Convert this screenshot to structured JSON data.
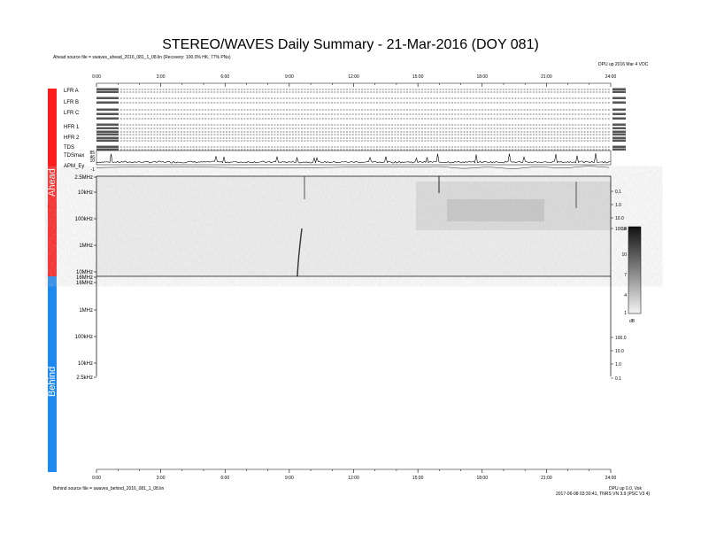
{
  "title": "STEREO/WAVES Daily Summary - 21-Mar-2016 (DOY 081)",
  "ahead_source": "Ahead source file = swaves_ahead_2016_081_1_08.lin (Recovery: 100.0% HK, 77% PNs)",
  "behind_source": "Behind source file = swaves_behind_2016_081_1_08.lin",
  "top_right_info": "DPU up 2016 Mar 4 VOC",
  "bottom_right_info_1": "DPU up 0.0, Vok",
  "bottom_right_info_2": "2017-06-08 03:30:41, TNRS VN 3.9 (PSC V3 4)",
  "labels": {
    "ahead": "Ahead",
    "behind": "Behind"
  },
  "colors": {
    "ahead_strip": "#ff1c1c",
    "behind_strip": "#1f88ee"
  },
  "chart_data": [
    {
      "type": "heatmap",
      "name": "Ahead dynamic spectrum",
      "x_ticks": [
        "0:00",
        "3:00",
        "6:00",
        "9:00",
        "12:00",
        "15:00",
        "18:00",
        "21:00",
        "24:00"
      ],
      "y_tick_labels": [
        "2.5MHz",
        "10kHz",
        "100kHz",
        "1MHz",
        "10MHz",
        "16MHz"
      ],
      "colorbar": {
        "ticks": [
          "14",
          "10",
          "7",
          "4",
          "1"
        ],
        "unit": "dB",
        "range": [
          1,
          14
        ]
      },
      "right_ticks": [
        "0.1",
        "1.0",
        "10.0",
        "100.0"
      ],
      "panels": [
        "LFR A",
        "LFR B",
        "LFR C",
        "HFR 1",
        "HFR 2",
        "TDS",
        "TDSmax",
        "APM_Ey"
      ],
      "tdsmax_ticks": [
        "85",
        "46",
        "10"
      ],
      "apm_tick": "-1"
    },
    {
      "type": "heatmap",
      "name": "Behind dynamic spectrum",
      "x_ticks": [
        "0:00",
        "3:00",
        "6:00",
        "9:00",
        "12:00",
        "15:00",
        "18:00",
        "21:00",
        "24:00"
      ],
      "y_tick_labels": [
        "16MHz",
        "1MHz",
        "100kHz",
        "10kHz",
        "2.5kHz"
      ],
      "right_ticks": [
        "100.0",
        "10.0",
        "1.0",
        "0.1"
      ]
    }
  ]
}
